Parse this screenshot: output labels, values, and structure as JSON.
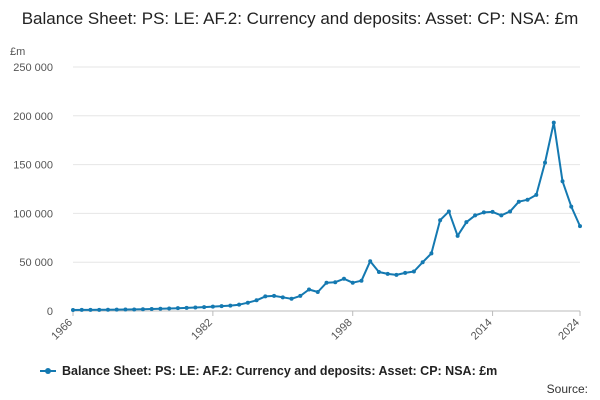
{
  "chart_data": {
    "type": "line",
    "title": "Balance Sheet: PS: LE: AF.2: Currency and deposits: Asset: CP: NSA: £m",
    "ylabel": "£m",
    "ylim": [
      0,
      250000
    ],
    "yticks": [
      0,
      50000,
      100000,
      150000,
      200000,
      250000
    ],
    "ytick_labels": [
      "0",
      "50 000",
      "100 000",
      "150 000",
      "200 000",
      "250 000"
    ],
    "xlim": [
      1966,
      2024
    ],
    "xtick_labels": [
      "1966",
      "1982",
      "1998",
      "2014",
      "2024"
    ],
    "grid": true,
    "legend_position": "bottom",
    "color": "#1479b1",
    "series": [
      {
        "name": "Balance Sheet: PS: LE: AF.2: Currency and deposits: Asset: CP: NSA: £m",
        "x": [
          1966,
          1967,
          1968,
          1969,
          1970,
          1971,
          1972,
          1973,
          1974,
          1975,
          1976,
          1977,
          1978,
          1979,
          1980,
          1981,
          1982,
          1983,
          1984,
          1985,
          1986,
          1987,
          1988,
          1989,
          1990,
          1991,
          1992,
          1993,
          1994,
          1995,
          1996,
          1997,
          1998,
          1999,
          2000,
          2001,
          2002,
          2003,
          2004,
          2005,
          2006,
          2007,
          2008,
          2009,
          2010,
          2011,
          2012,
          2013,
          2014,
          2015,
          2016,
          2017,
          2018,
          2019,
          2020,
          2021,
          2022,
          2023,
          2024
        ],
        "values": [
          1000,
          1100,
          1100,
          1200,
          1300,
          1400,
          1500,
          1600,
          1800,
          2000,
          2300,
          2600,
          2900,
          3200,
          3600,
          4000,
          4500,
          5000,
          5500,
          6500,
          8500,
          11000,
          15000,
          15500,
          14000,
          12500,
          15500,
          22000,
          19500,
          29000,
          29500,
          33000,
          29000,
          31000,
          51000,
          40000,
          38000,
          37000,
          39000,
          40500,
          50000,
          59000,
          93000,
          102000,
          77000,
          91000,
          98000,
          101000,
          101500,
          98000,
          102000,
          112000,
          114000,
          119000,
          152000,
          193000,
          133000,
          107000,
          87000
        ]
      }
    ]
  },
  "source_label": "Source:"
}
